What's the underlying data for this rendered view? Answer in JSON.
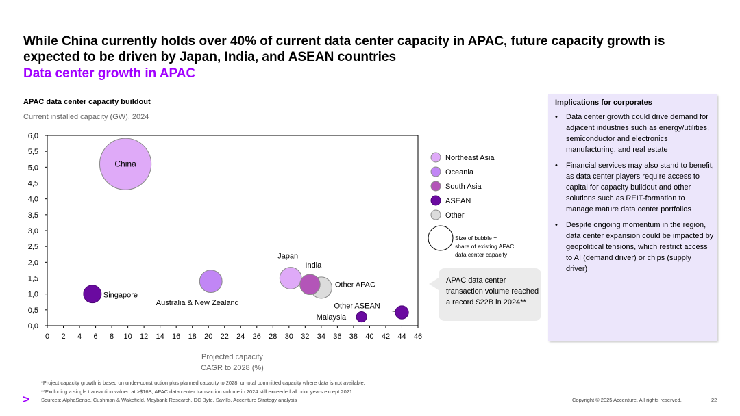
{
  "header": {
    "title": "While China currently holds over 40% of current data center capacity in APAC, future capacity growth is expected to be driven by Japan, India, and ASEAN countries",
    "subtitle": "Data center growth in APAC"
  },
  "chart_header": {
    "title": "APAC data center capacity buildout",
    "subtitle": "Current installed capacity (GW), 2024"
  },
  "chart_data": {
    "type": "scatter",
    "subtype": "bubble",
    "title": "APAC data center capacity buildout",
    "ylabel": "Current installed capacity (GW), 2024",
    "xlabel_lines": [
      "Projected capacity",
      "CAGR to 2028 (%)"
    ],
    "xlim": [
      0,
      46
    ],
    "ylim": [
      0,
      6
    ],
    "xticks": [
      0,
      2,
      4,
      6,
      8,
      10,
      12,
      14,
      16,
      18,
      20,
      22,
      24,
      26,
      28,
      30,
      32,
      34,
      36,
      38,
      40,
      42,
      44,
      46
    ],
    "yticks": [
      "0,0",
      "0,5",
      "1,0",
      "1,5",
      "2,0",
      "2,5",
      "3,0",
      "3,5",
      "4,0",
      "4,5",
      "5,0",
      "5,5",
      "6,0"
    ],
    "grid": false,
    "legend_position": "right",
    "size_legend_text": [
      "Size of bubble =",
      "share of existing APAC",
      "data center capacity"
    ],
    "groups": [
      {
        "name": "Northeast Asia",
        "color": "#dfaaf8"
      },
      {
        "name": "Oceania",
        "color": "#c186f5"
      },
      {
        "name": "South Asia",
        "color": "#b355b8"
      },
      {
        "name": "ASEAN",
        "color": "#6a0aa0"
      },
      {
        "name": "Other",
        "color": "#dcdcdc"
      }
    ],
    "points": [
      {
        "label": "China",
        "x": 9.7,
        "y": 5.1,
        "size": 42,
        "group": "Northeast Asia"
      },
      {
        "label": "Singapore",
        "x": 5.6,
        "y": 1.0,
        "size": 5,
        "group": "ASEAN"
      },
      {
        "label": "Australia & New Zealand",
        "x": 20.3,
        "y": 1.4,
        "size": 8,
        "group": "Oceania"
      },
      {
        "label": "Japan",
        "x": 30.2,
        "y": 1.5,
        "size": 7.5,
        "group": "Northeast Asia"
      },
      {
        "label": "India",
        "x": 32.6,
        "y": 1.3,
        "size": 6.5,
        "group": "South Asia"
      },
      {
        "label": "Other APAC",
        "x": 34.0,
        "y": 1.2,
        "size": 7.2,
        "group": "Other"
      },
      {
        "label": "Malaysia",
        "x": 39.0,
        "y": 0.28,
        "size": 1.7,
        "group": "ASEAN"
      },
      {
        "label": "Other ASEAN",
        "x": 44.0,
        "y": 0.42,
        "size": 2.8,
        "group": "ASEAN"
      }
    ]
  },
  "callout": {
    "text": "APAC data center transaction volume reached a record $22B in 2024**"
  },
  "implications": {
    "title": "Implications for corporates",
    "items": [
      "Data center growth could drive demand for adjacent industries such as energy/utilities, semiconductor and electronics manufacturing, and real estate",
      "Financial services may also stand to benefit, as data center players require access to capital for capacity buildout and other solutions such as REIT-formation to manage mature data center portfolios",
      "Despite ongoing momentum in the region, data center expansion could be impacted by geopolitical tensions, which restrict access to AI (demand driver) or chips (supply driver)"
    ]
  },
  "footer": {
    "note1": "*Project capacity growth is based on under-construction plus planned capacity to 2028, or total committed capacity where data is not available.",
    "note2": "**Excluding a single transaction valued at >$16B, APAC data center transaction volume in 2024 still exceeded all prior years except 2021.",
    "sources": "Sources: AlphaSense, Cushman & Wakefield, Maybank Research, DC Byte, Savills, Accenture Strategy analysis",
    "logo": ">",
    "copyright": "Copyright © 2025 Accenture. All rights reserved.",
    "page_number": "22"
  },
  "colors": {
    "accent": "#a100ff",
    "panel_bg": "#ece6fb",
    "callout_bg": "#ebebeb"
  }
}
